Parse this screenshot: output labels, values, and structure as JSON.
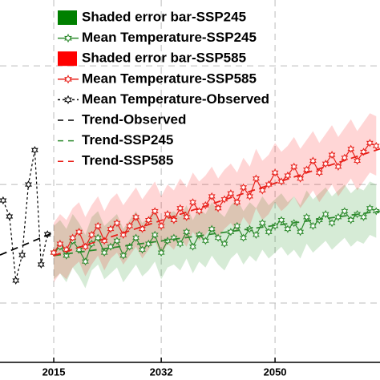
{
  "chart_data": {
    "type": "line",
    "xlim": [
      2006.5,
      2066.6
    ],
    "xticks": [
      2015,
      2032,
      2050
    ],
    "ylim": [
      0,
      6.11
    ],
    "ygrid": [
      1,
      3,
      5
    ],
    "grid": true,
    "series": [
      {
        "name": "Mean Temperature-SSP245",
        "color": "#2e8b2e",
        "style": "solid",
        "marker": true,
        "band": {
          "name": "Shaded error bar-SSP245",
          "color": "#008000",
          "error": 0.45
        },
        "x": [
          2015,
          2016,
          2017,
          2018,
          2019,
          2020,
          2021,
          2022,
          2023,
          2024,
          2025,
          2026,
          2027,
          2028,
          2029,
          2030,
          2031,
          2032,
          2033,
          2034,
          2035,
          2036,
          2037,
          2038,
          2039,
          2040,
          2041,
          2042,
          2043,
          2044,
          2045,
          2046,
          2047,
          2048,
          2049,
          2050,
          2051,
          2052,
          2053,
          2054,
          2055,
          2056,
          2057,
          2058,
          2059,
          2060,
          2061,
          2062,
          2063,
          2064,
          2065,
          2066
        ],
        "values": [
          1.85,
          1.95,
          1.8,
          2.05,
          1.9,
          1.7,
          2.0,
          2.1,
          1.85,
          1.95,
          2.05,
          1.8,
          1.95,
          2.1,
          1.9,
          2.0,
          2.15,
          1.85,
          2.05,
          2.1,
          2.0,
          2.2,
          1.95,
          2.15,
          2.05,
          2.25,
          2.1,
          2.0,
          2.2,
          2.3,
          2.1,
          2.25,
          2.15,
          2.35,
          2.2,
          2.3,
          2.4,
          2.25,
          2.35,
          2.2,
          2.45,
          2.3,
          2.4,
          2.5,
          2.35,
          2.45,
          2.55,
          2.4,
          2.5,
          2.45,
          2.6,
          2.55
        ]
      },
      {
        "name": "Mean Temperature-SSP585",
        "color": "#e8201a",
        "style": "solid",
        "marker": true,
        "band": {
          "name": "Shaded error bar-SSP585",
          "color": "#ff0000",
          "error": 0.5
        },
        "x": [
          2015,
          2016,
          2017,
          2018,
          2019,
          2020,
          2021,
          2022,
          2023,
          2024,
          2025,
          2026,
          2027,
          2028,
          2029,
          2030,
          2031,
          2032,
          2033,
          2034,
          2035,
          2036,
          2037,
          2038,
          2039,
          2040,
          2041,
          2042,
          2043,
          2044,
          2045,
          2046,
          2047,
          2048,
          2049,
          2050,
          2051,
          2052,
          2053,
          2054,
          2055,
          2056,
          2057,
          2058,
          2059,
          2060,
          2061,
          2062,
          2063,
          2064,
          2065,
          2066
        ],
        "values": [
          1.85,
          2.0,
          1.9,
          2.1,
          2.2,
          1.95,
          2.15,
          2.3,
          2.05,
          2.25,
          2.35,
          2.15,
          2.3,
          2.45,
          2.25,
          2.4,
          2.55,
          2.3,
          2.5,
          2.4,
          2.6,
          2.45,
          2.7,
          2.55,
          2.65,
          2.8,
          2.6,
          2.75,
          2.85,
          2.7,
          2.95,
          2.8,
          3.1,
          2.9,
          3.0,
          3.2,
          3.05,
          3.15,
          3.3,
          3.1,
          3.25,
          3.4,
          3.2,
          3.35,
          3.5,
          3.3,
          3.45,
          3.6,
          3.4,
          3.55,
          3.7,
          3.65
        ]
      },
      {
        "name": "Mean Temperature-Observed",
        "color": "#000000",
        "style": "dotted",
        "marker": true,
        "x": [
          2007,
          2008,
          2009,
          2010,
          2011,
          2012,
          2013,
          2014
        ],
        "values": [
          2.73,
          2.46,
          1.38,
          1.81,
          3.0,
          3.58,
          1.65,
          2.16
        ]
      },
      {
        "name": "Trend-Observed",
        "color": "#000000",
        "style": "dashed",
        "marker": false,
        "x": [
          2006.5,
          2015
        ],
        "values": [
          1.81,
          2.19
        ]
      },
      {
        "name": "Trend-SSP245",
        "color": "#2e8b2e",
        "style": "dashed",
        "marker": false,
        "x": [
          2015,
          2066.6
        ],
        "values": [
          1.8,
          2.55
        ]
      },
      {
        "name": "Trend-SSP585",
        "color": "#e8201a",
        "style": "dashed",
        "marker": false,
        "x": [
          2015,
          2066.6
        ],
        "values": [
          1.8,
          3.6
        ]
      }
    ]
  }
}
